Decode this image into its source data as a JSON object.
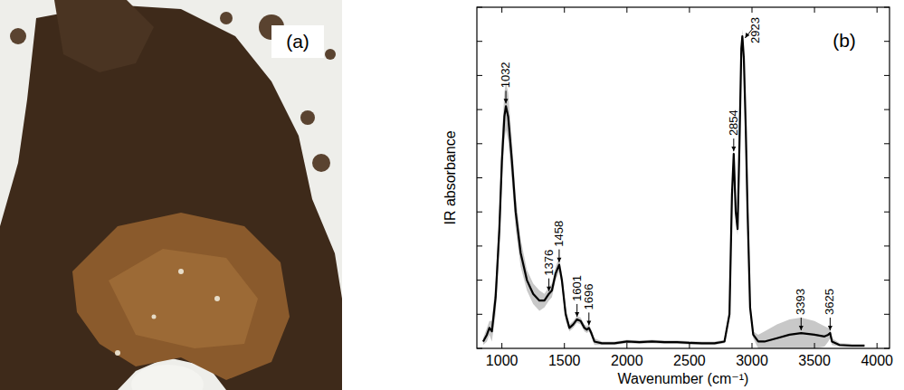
{
  "image_panel": {
    "label": "(a)"
  },
  "chart_data": {
    "type": "line",
    "panel_label": "(b)",
    "x_label": "Wavenumber (cm⁻¹)",
    "y_label": "IR absorbance",
    "xlim": [
      800,
      4100
    ],
    "xticks": [
      1000,
      1500,
      2000,
      2500,
      3000,
      3500,
      4000
    ],
    "ylim": [
      0,
      1
    ],
    "yticks": [
      0,
      0.1,
      0.2,
      0.3,
      0.4,
      0.5,
      0.6,
      0.7,
      0.8,
      0.9,
      1
    ],
    "tick_labels": "x",
    "grid": false,
    "color": "#000000",
    "x": [
      850,
      880,
      900,
      920,
      950,
      980,
      1000,
      1020,
      1032,
      1050,
      1080,
      1110,
      1150,
      1200,
      1250,
      1300,
      1340,
      1376,
      1400,
      1430,
      1458,
      1480,
      1510,
      1540,
      1570,
      1601,
      1630,
      1660,
      1680,
      1696,
      1715,
      1740,
      1800,
      1900,
      2000,
      2100,
      2200,
      2300,
      2400,
      2500,
      2600,
      2700,
      2780,
      2820,
      2840,
      2854,
      2870,
      2885,
      2900,
      2915,
      2923,
      2935,
      2950,
      2965,
      2985,
      3010,
      3050,
      3100,
      3200,
      3300,
      3393,
      3500,
      3580,
      3610,
      3625,
      3640,
      3700,
      3800,
      3900
    ],
    "values": [
      0.02,
      0.04,
      0.06,
      0.05,
      0.15,
      0.35,
      0.55,
      0.68,
      0.71,
      0.68,
      0.55,
      0.4,
      0.28,
      0.2,
      0.16,
      0.14,
      0.14,
      0.16,
      0.17,
      0.22,
      0.245,
      0.2,
      0.1,
      0.06,
      0.07,
      0.085,
      0.08,
      0.06,
      0.055,
      0.06,
      0.045,
      0.02,
      0.015,
      0.015,
      0.02,
      0.018,
      0.02,
      0.018,
      0.018,
      0.016,
      0.015,
      0.015,
      0.02,
      0.1,
      0.45,
      0.57,
      0.4,
      0.35,
      0.6,
      0.88,
      0.915,
      0.85,
      0.65,
      0.4,
      0.12,
      0.04,
      0.02,
      0.02,
      0.03,
      0.04,
      0.045,
      0.04,
      0.035,
      0.04,
      0.045,
      0.02,
      0.01,
      0.008,
      0.008
    ],
    "errors": [
      0.01,
      0.02,
      0.02,
      0.03,
      0.05,
      0.06,
      0.07,
      0.07,
      0.07,
      0.07,
      0.06,
      0.05,
      0.04,
      0.03,
      0.03,
      0.03,
      0.02,
      0.02,
      0.02,
      0.02,
      0.02,
      0.02,
      0.02,
      0.01,
      0.01,
      0.01,
      0.01,
      0.01,
      0.01,
      0.01,
      0.01,
      0.01,
      0.005,
      0.005,
      0.005,
      0.005,
      0.005,
      0.005,
      0.005,
      0.005,
      0.005,
      0.005,
      0.005,
      0.01,
      0.02,
      0.02,
      0.02,
      0.02,
      0.02,
      0.02,
      0.02,
      0.02,
      0.02,
      0.02,
      0.02,
      0.01,
      0.02,
      0.03,
      0.04,
      0.045,
      0.045,
      0.04,
      0.03,
      0.02,
      0.015,
      0.01,
      0.005,
      0.005,
      0.005
    ],
    "annotations": [
      {
        "text": "1032",
        "x": 1032,
        "y": 0.71
      },
      {
        "text": "1376",
        "x": 1376,
        "y": 0.16
      },
      {
        "text": "1458",
        "x": 1458,
        "y": 0.245
      },
      {
        "text": "1601",
        "x": 1601,
        "y": 0.085
      },
      {
        "text": "1696",
        "x": 1696,
        "y": 0.06
      },
      {
        "text": "2854",
        "x": 2854,
        "y": 0.57
      },
      {
        "text": "2923",
        "x": 2923,
        "y": 0.915
      },
      {
        "text": "3393",
        "x": 3393,
        "y": 0.045
      },
      {
        "text": "3625",
        "x": 3625,
        "y": 0.045
      }
    ]
  }
}
